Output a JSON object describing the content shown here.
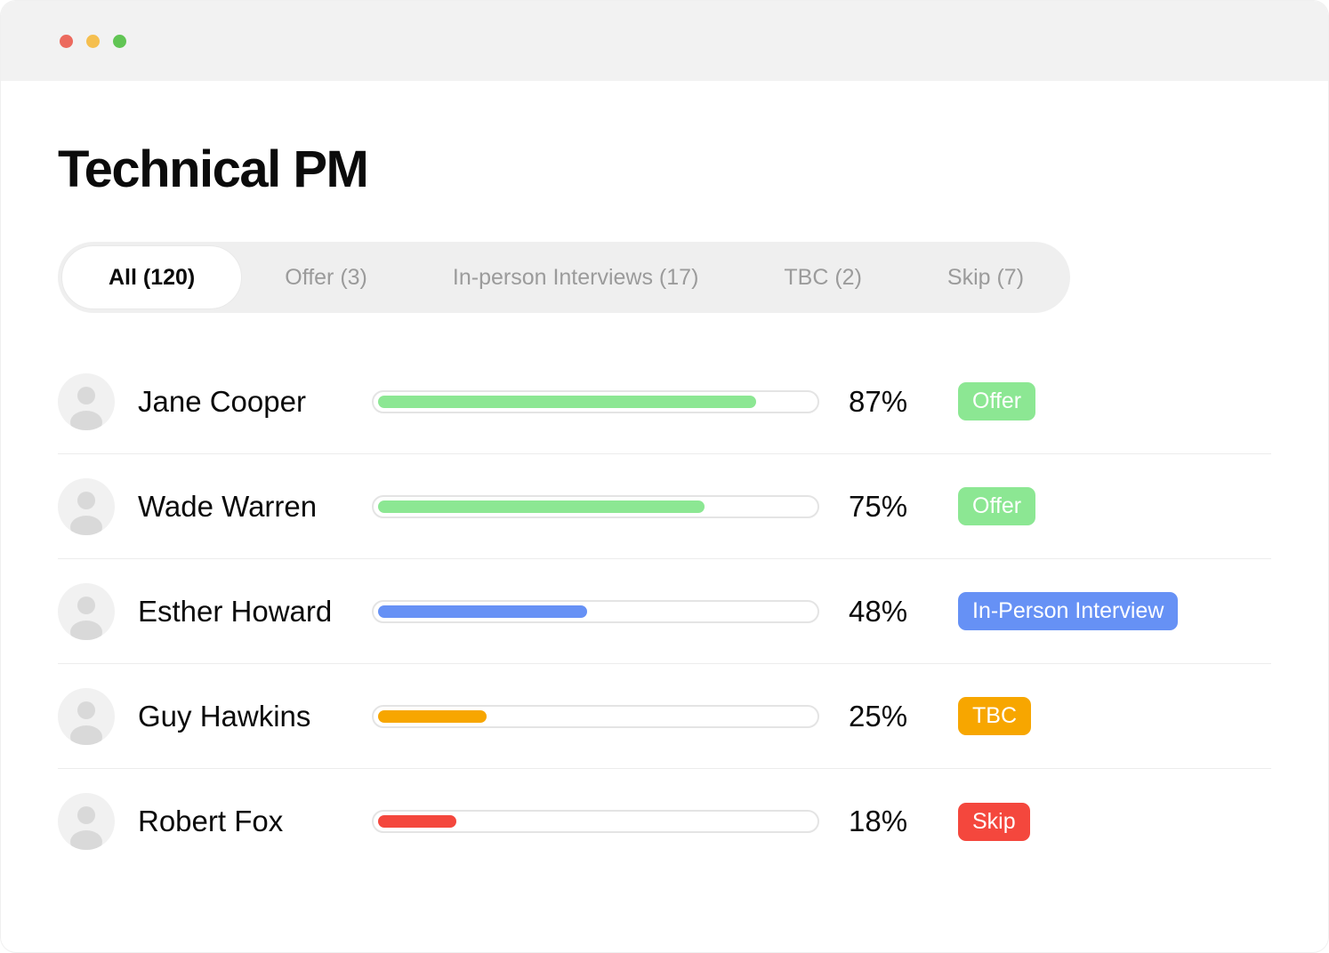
{
  "window": {
    "traffic_lights": [
      {
        "name": "close",
        "color": "#EC6A5E"
      },
      {
        "name": "minimize",
        "color": "#F5BF4F"
      },
      {
        "name": "zoom",
        "color": "#61C554"
      }
    ]
  },
  "page": {
    "title": "Technical PM"
  },
  "tabs": [
    {
      "label": "All (120)",
      "active": true
    },
    {
      "label": "Offer (3)",
      "active": false
    },
    {
      "label": "In-person Interviews (17)",
      "active": false
    },
    {
      "label": "TBC (2)",
      "active": false
    },
    {
      "label": "Skip (7)",
      "active": false
    }
  ],
  "candidates": [
    {
      "name": "Jane Cooper",
      "percent": 87,
      "percent_label": "87%",
      "status": "Offer",
      "color": "#8CE793"
    },
    {
      "name": "Wade Warren",
      "percent": 75,
      "percent_label": "75%",
      "status": "Offer",
      "color": "#8CE793"
    },
    {
      "name": "Esther Howard",
      "percent": 48,
      "percent_label": "48%",
      "status": "In-Person Interview",
      "color": "#6691F5"
    },
    {
      "name": "Guy Hawkins",
      "percent": 25,
      "percent_label": "25%",
      "status": "TBC",
      "color": "#F7A600"
    },
    {
      "name": "Robert Fox",
      "percent": 18,
      "percent_label": "18%",
      "status": "Skip",
      "color": "#F4473D"
    }
  ]
}
